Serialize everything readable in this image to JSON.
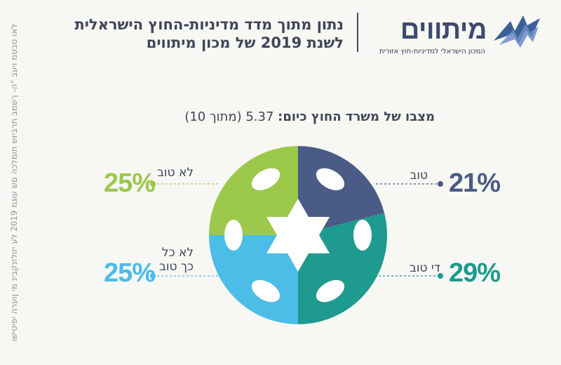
{
  "side_note": "לאו טבטמ ויעב \"ה- ךשמב תרביוש תומלכה םש עוגמ 2019 לע יזולזנקבינ מי ןוערה יפיטישו",
  "logo": {
    "name": "מיתווים",
    "tagline": "המכון הישראלי למדיניות-חוץ אזורית"
  },
  "header": {
    "title_line1": "נתון מתוך מדד מדיניות-החוץ הישראלית",
    "title_line2": "לשנת 2019 של מכון מיתווים"
  },
  "chart_data": {
    "type": "pie",
    "subtitle_lead": "מצבו של משרד החוץ כיום:",
    "subtitle_value": "5.37",
    "subtitle_suffix": "(מתוך 10)",
    "slices": [
      {
        "label": "טוב",
        "value": 21,
        "display": "21%",
        "color": "#4a5b86"
      },
      {
        "label": "די טוב",
        "value": 29,
        "display": "29%",
        "color": "#1e9a8e"
      },
      {
        "label": "לא כל כך טוב",
        "label_line1": "לא כל",
        "label_line2": "כך טוב",
        "value": 25,
        "display": "25%",
        "color": "#4bbde6"
      },
      {
        "label": "לא טוב",
        "value": 25,
        "display": "25%",
        "color": "#9bc84b"
      }
    ]
  }
}
